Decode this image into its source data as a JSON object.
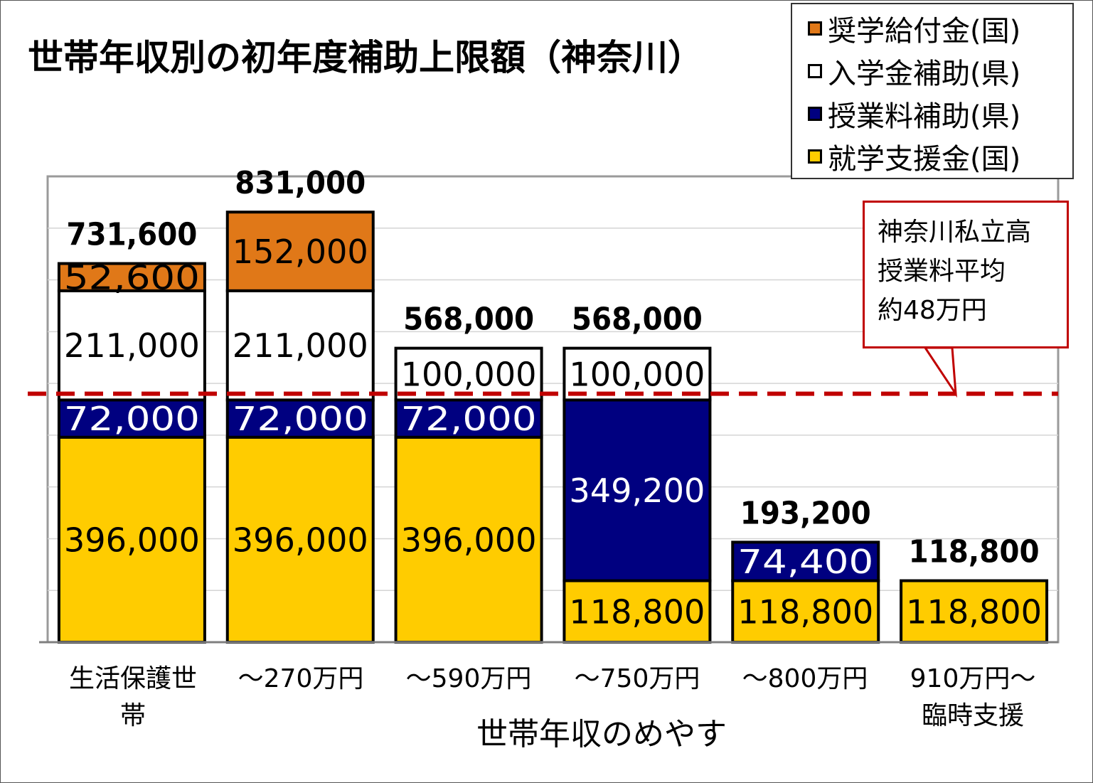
{
  "chart_data": {
    "type": "bar",
    "stacked": true,
    "title": "世帯年収別の初年度補助上限額（神奈川）",
    "xlabel": "世帯年収のめやす",
    "categories": [
      "生活保護世帯",
      "～270万円",
      "～590万円",
      "～750万円",
      "～800万円",
      "910万円～臨時支援"
    ],
    "category_lines": [
      [
        "生活保護世",
        "帯"
      ],
      [
        "～270万円"
      ],
      [
        "～590万円"
      ],
      [
        "～750万円"
      ],
      [
        "～800万円"
      ],
      [
        "910万円～",
        "臨時支援"
      ]
    ],
    "ylim": [
      0,
      900000
    ],
    "grid": true,
    "legend_position": "top-right",
    "series": [
      {
        "name": "就学支援金(国)",
        "color": "#ffcc00",
        "text_color": "#000000",
        "values": [
          396000,
          396000,
          396000,
          118800,
          118800,
          118800
        ],
        "labels": [
          "396,000",
          "396,000",
          "396,000",
          "118,800",
          "118,800",
          "118,800"
        ]
      },
      {
        "name": "授業料補助(県)",
        "color": "#000080",
        "text_color": "#ffffff",
        "values": [
          72000,
          72000,
          72000,
          349200,
          74400,
          0
        ],
        "labels": [
          "72,000",
          "72,000",
          "72,000",
          "349,200",
          "74,400",
          ""
        ]
      },
      {
        "name": "入学金補助(県)",
        "color": "#ffffff",
        "text_color": "#000000",
        "values": [
          211000,
          211000,
          100000,
          100000,
          0,
          0
        ],
        "labels": [
          "211,000",
          "211,000",
          "100,000",
          "100,000",
          "",
          ""
        ]
      },
      {
        "name": "奨学給付金(国)",
        "color": "#e07818",
        "text_color": "#000000",
        "values": [
          52600,
          152000,
          0,
          0,
          0,
          0
        ],
        "labels": [
          "52,600",
          "152,000",
          "",
          "",
          "",
          ""
        ]
      }
    ],
    "totals": [
      731600,
      831000,
      568000,
      568000,
      193200,
      118800
    ],
    "total_labels": [
      "731,600",
      "831,000",
      "568,000",
      "568,000",
      "193,200",
      "118,800"
    ],
    "reference_line": {
      "value": 480000,
      "color": "#c00000",
      "style": "dashed"
    },
    "annotation": {
      "lines": [
        "神奈川私立高",
        "授業料平均",
        "約48万円"
      ]
    }
  },
  "legend": {
    "items": [
      {
        "label": "奨学給付金(国)",
        "color": "#e07818"
      },
      {
        "label": "入学金補助(県)",
        "color": "#ffffff"
      },
      {
        "label": "授業料補助(県)",
        "color": "#000080"
      },
      {
        "label": "就学支援金(国)",
        "color": "#ffcc00"
      }
    ]
  }
}
